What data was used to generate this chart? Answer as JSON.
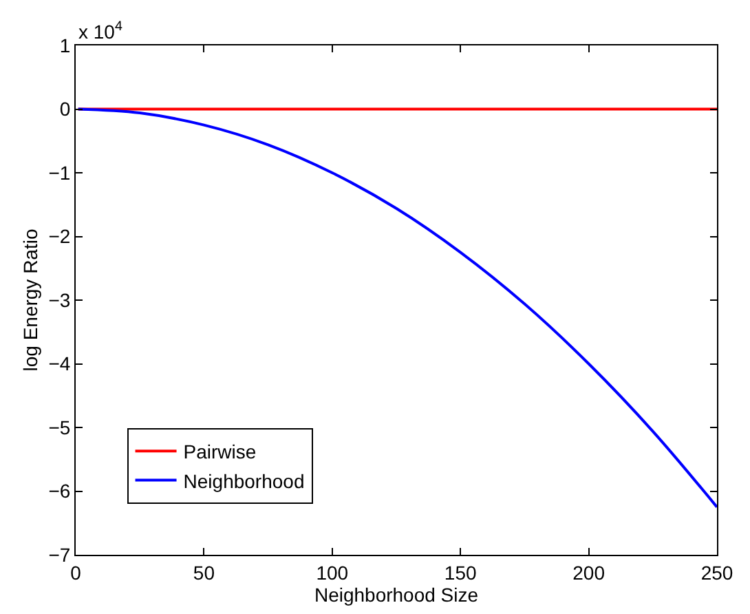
{
  "chart_data": {
    "type": "line",
    "xlabel": "Neighborhood Size",
    "ylabel": "log Energy Ratio",
    "annotations": [
      "x 10$^{4}$"
    ],
    "series": [
      {
        "name": "Pairwise",
        "color": "#ff0000",
        "x": [
          1,
          250
        ],
        "values": [
          0,
          0
        ]
      },
      {
        "name": "Neighborhood",
        "color": "#0000ff",
        "x": [
          1,
          25,
          50,
          75,
          100,
          125,
          150,
          175,
          200,
          225,
          250
        ],
        "values": [
          0,
          -0.06,
          -0.25,
          -0.56,
          -1,
          -1.56,
          -2.25,
          -3.06,
          -4,
          -5.06,
          -6.25
        ]
      }
    ],
    "xlim": [
      0,
      250
    ],
    "xticks": [
      0,
      50,
      100,
      150,
      200,
      250
    ],
    "ylim": [
      -7,
      1
    ],
    "yticks": [
      {
        "value": -7,
        "label": "−7"
      },
      {
        "value": -6,
        "label": "−6"
      },
      {
        "value": -5,
        "label": "−5"
      },
      {
        "value": -4,
        "label": "−4"
      },
      {
        "value": -3,
        "label": "−3"
      },
      {
        "value": -2,
        "label": "−2"
      },
      {
        "value": -1,
        "label": "−1"
      },
      0,
      1
    ],
    "legend": "bottom left",
    "marker": "none",
    "line_style": "solid"
  }
}
